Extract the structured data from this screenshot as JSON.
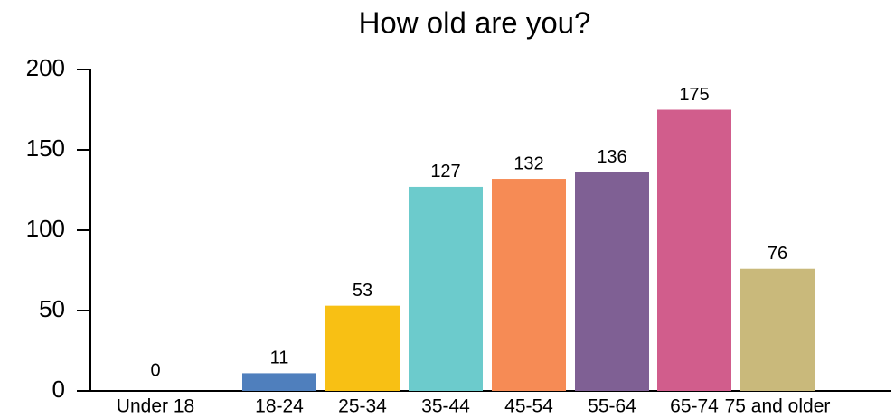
{
  "chart_data": {
    "type": "bar",
    "title": "How old are you?",
    "categories": [
      "Under 18",
      "18-24",
      "25-34",
      "35-44",
      "45-54",
      "55-64",
      "65-74",
      "75 and older"
    ],
    "values": [
      0,
      11,
      53,
      127,
      132,
      136,
      175,
      76
    ],
    "colors": [
      null,
      "#4f7fbd",
      "#f8c014",
      "#6ccbcc",
      "#f68b55",
      "#7f6094",
      "#d15d8c",
      "#c9b97b"
    ],
    "ylim": [
      0,
      200
    ],
    "yticks": [
      0,
      50,
      100,
      150,
      200
    ],
    "grid": false
  }
}
